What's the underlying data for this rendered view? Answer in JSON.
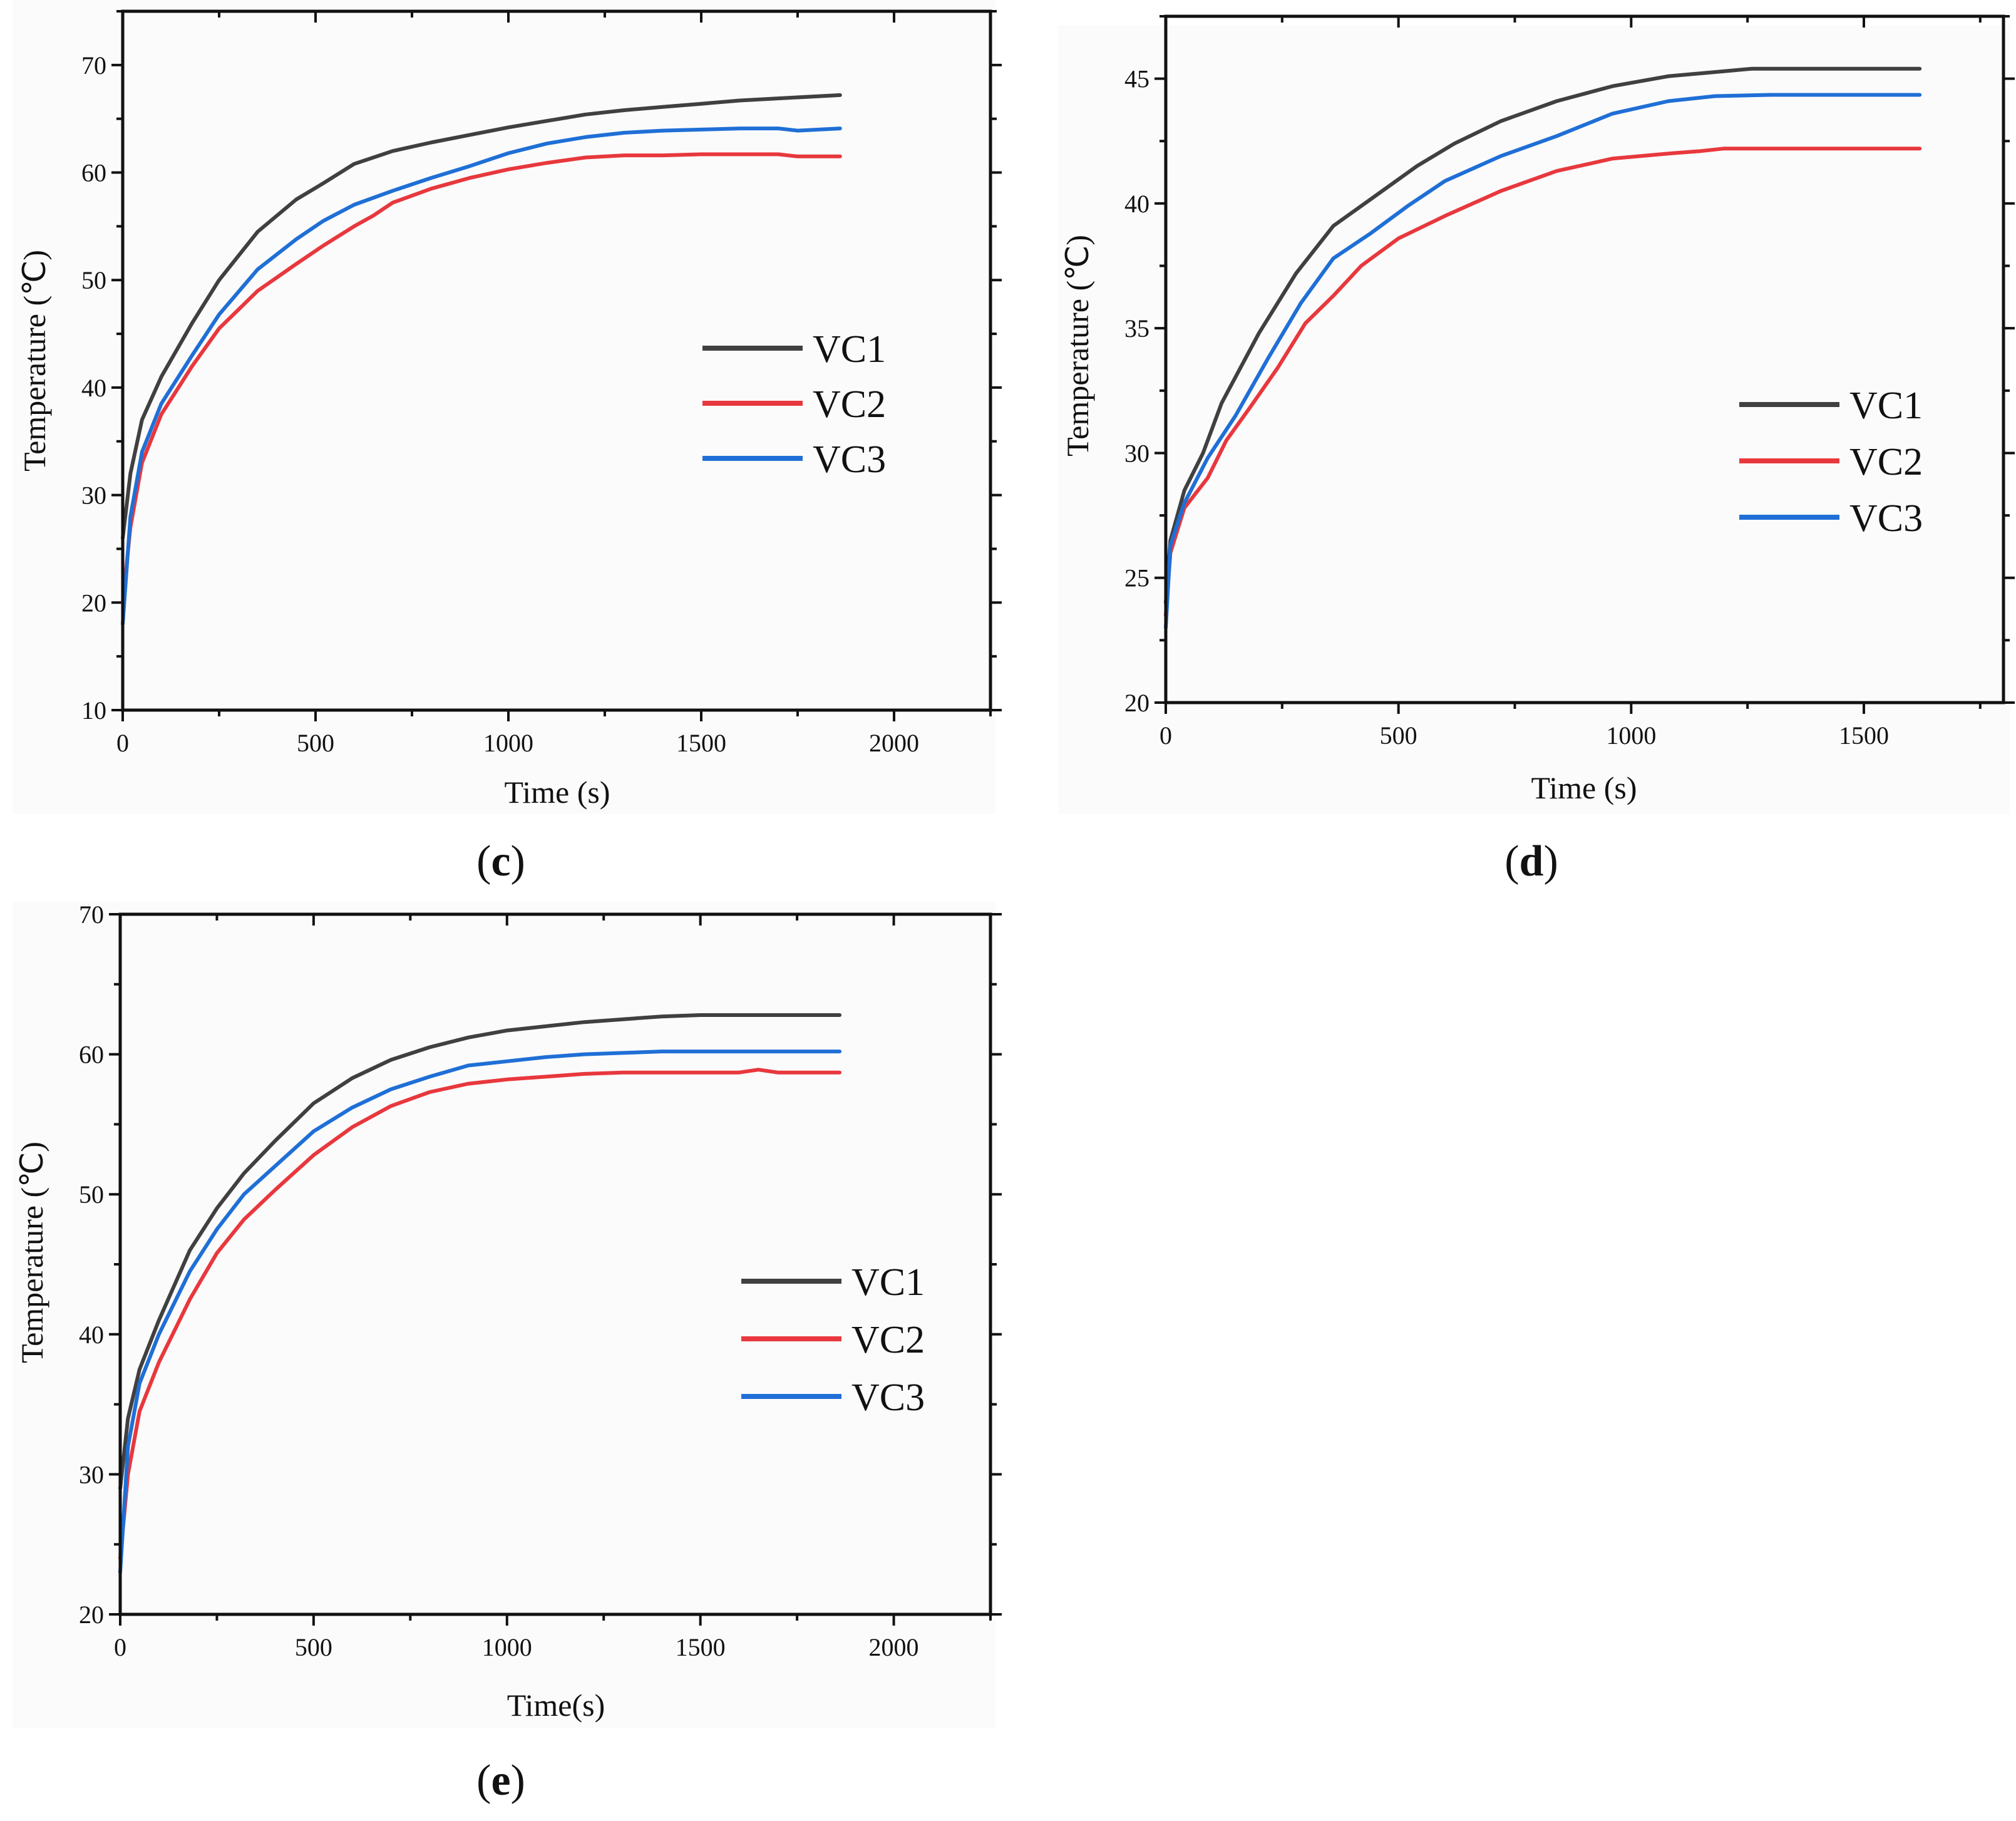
{
  "colors": {
    "VC1": "#404040",
    "VC2": "#e8383d",
    "VC3": "#1f6fd6"
  },
  "chart_data": [
    {
      "type": "line",
      "panel": "c",
      "xlabel": "Time (s)",
      "ylabel": "Temperature (℃)",
      "xlim": [
        0,
        2250
      ],
      "ylim": [
        10,
        75
      ],
      "xticks": [
        0,
        500,
        1000,
        1500,
        2000
      ],
      "yticks": [
        10,
        20,
        30,
        40,
        50,
        60,
        70
      ],
      "legend_position": "middle-right",
      "series": [
        {
          "name": "VC1",
          "x": [
            0,
            20,
            50,
            100,
            180,
            250,
            350,
            450,
            520,
            600,
            700,
            800,
            900,
            1000,
            1100,
            1200,
            1300,
            1400,
            1500,
            1600,
            1700,
            1860
          ],
          "y": [
            26.0,
            32.0,
            37.0,
            41.0,
            46.0,
            50.0,
            54.5,
            57.5,
            59.0,
            60.8,
            62.0,
            62.8,
            63.5,
            64.2,
            64.8,
            65.4,
            65.8,
            66.1,
            66.4,
            66.7,
            66.9,
            67.2
          ]
        },
        {
          "name": "VC2",
          "x": [
            0,
            20,
            50,
            100,
            180,
            250,
            350,
            450,
            520,
            600,
            650,
            700,
            800,
            900,
            1000,
            1100,
            1200,
            1300,
            1400,
            1500,
            1600,
            1700,
            1750,
            1860
          ],
          "y": [
            20.0,
            27.0,
            33.0,
            37.5,
            42.0,
            45.5,
            49.0,
            51.5,
            53.2,
            55.0,
            56.0,
            57.2,
            58.5,
            59.5,
            60.3,
            60.9,
            61.4,
            61.6,
            61.6,
            61.7,
            61.7,
            61.7,
            61.5,
            61.5
          ]
        },
        {
          "name": "VC3",
          "x": [
            0,
            20,
            50,
            100,
            180,
            250,
            350,
            450,
            520,
            600,
            700,
            800,
            900,
            1000,
            1100,
            1200,
            1300,
            1400,
            1500,
            1600,
            1700,
            1750,
            1860
          ],
          "y": [
            18.0,
            28.0,
            34.0,
            38.5,
            43.0,
            46.8,
            51.0,
            53.8,
            55.5,
            57.0,
            58.3,
            59.5,
            60.6,
            61.8,
            62.7,
            63.3,
            63.7,
            63.9,
            64.0,
            64.1,
            64.1,
            63.9,
            64.1
          ]
        }
      ]
    },
    {
      "type": "line",
      "panel": "d",
      "xlabel": "Time (s)",
      "ylabel": "Temperature (℃)",
      "xlim": [
        0,
        1800
      ],
      "ylim": [
        20,
        47.5
      ],
      "xticks": [
        0,
        500,
        1000,
        1500
      ],
      "yticks": [
        20,
        25,
        30,
        35,
        40,
        45
      ],
      "legend_position": "middle-right",
      "series": [
        {
          "name": "VC1",
          "x": [
            0,
            10,
            40,
            80,
            120,
            200,
            280,
            360,
            450,
            540,
            620,
            720,
            840,
            960,
            1080,
            1200,
            1260,
            1400,
            1500,
            1620
          ],
          "y": [
            24.0,
            26.5,
            28.5,
            30.0,
            32.0,
            34.8,
            37.2,
            39.1,
            40.3,
            41.5,
            42.4,
            43.3,
            44.1,
            44.7,
            45.1,
            45.3,
            45.4,
            45.4,
            45.4,
            45.4
          ]
        },
        {
          "name": "VC2",
          "x": [
            0,
            10,
            40,
            90,
            130,
            180,
            240,
            300,
            360,
            420,
            500,
            600,
            720,
            840,
            960,
            1080,
            1150,
            1200,
            1400,
            1500,
            1620
          ],
          "y": [
            23.5,
            26.0,
            27.8,
            29.0,
            30.5,
            31.8,
            33.4,
            35.2,
            36.3,
            37.5,
            38.6,
            39.5,
            40.5,
            41.3,
            41.8,
            42.0,
            42.1,
            42.2,
            42.2,
            42.2,
            42.2
          ]
        },
        {
          "name": "VC3",
          "x": [
            0,
            10,
            40,
            90,
            150,
            220,
            290,
            360,
            440,
            520,
            600,
            720,
            840,
            960,
            1080,
            1180,
            1300,
            1400,
            1500,
            1620
          ],
          "y": [
            23.0,
            26.3,
            28.0,
            29.8,
            31.5,
            33.8,
            36.0,
            37.8,
            38.8,
            39.9,
            40.9,
            41.9,
            42.7,
            43.6,
            44.1,
            44.3,
            44.35,
            44.35,
            44.35,
            44.35
          ]
        }
      ]
    },
    {
      "type": "line",
      "panel": "e",
      "xlabel": "Time(s)",
      "ylabel": "Temperature (℃)",
      "xlim": [
        0,
        2250
      ],
      "ylim": [
        20,
        70
      ],
      "xticks": [
        0,
        500,
        1000,
        1500,
        2000
      ],
      "yticks": [
        20,
        30,
        40,
        50,
        60,
        70
      ],
      "legend_position": "middle-right",
      "series": [
        {
          "name": "VC1",
          "x": [
            0,
            20,
            50,
            100,
            180,
            250,
            320,
            400,
            500,
            600,
            700,
            800,
            900,
            1000,
            1100,
            1200,
            1300,
            1400,
            1500,
            1600,
            1700,
            1860
          ],
          "y": [
            29.0,
            34.0,
            37.5,
            41.0,
            46.0,
            49.0,
            51.5,
            53.8,
            56.5,
            58.3,
            59.6,
            60.5,
            61.2,
            61.7,
            62.0,
            62.3,
            62.5,
            62.7,
            62.8,
            62.8,
            62.8,
            62.8
          ]
        },
        {
          "name": "VC2",
          "x": [
            0,
            20,
            50,
            100,
            180,
            250,
            320,
            400,
            500,
            600,
            700,
            800,
            900,
            1000,
            1100,
            1200,
            1300,
            1400,
            1500,
            1600,
            1650,
            1700,
            1860
          ],
          "y": [
            24.0,
            30.0,
            34.5,
            38.0,
            42.5,
            45.8,
            48.2,
            50.3,
            52.8,
            54.8,
            56.3,
            57.3,
            57.9,
            58.2,
            58.4,
            58.6,
            58.7,
            58.7,
            58.7,
            58.7,
            58.9,
            58.7,
            58.7
          ]
        },
        {
          "name": "VC3",
          "x": [
            0,
            20,
            50,
            100,
            180,
            250,
            320,
            400,
            500,
            600,
            700,
            800,
            900,
            1000,
            1100,
            1200,
            1300,
            1400,
            1500,
            1600,
            1700,
            1860
          ],
          "y": [
            23.0,
            32.0,
            36.5,
            40.0,
            44.5,
            47.5,
            50.0,
            52.0,
            54.5,
            56.2,
            57.5,
            58.4,
            59.2,
            59.5,
            59.8,
            60.0,
            60.1,
            60.2,
            60.2,
            60.2,
            60.2,
            60.2
          ]
        }
      ]
    }
  ]
}
